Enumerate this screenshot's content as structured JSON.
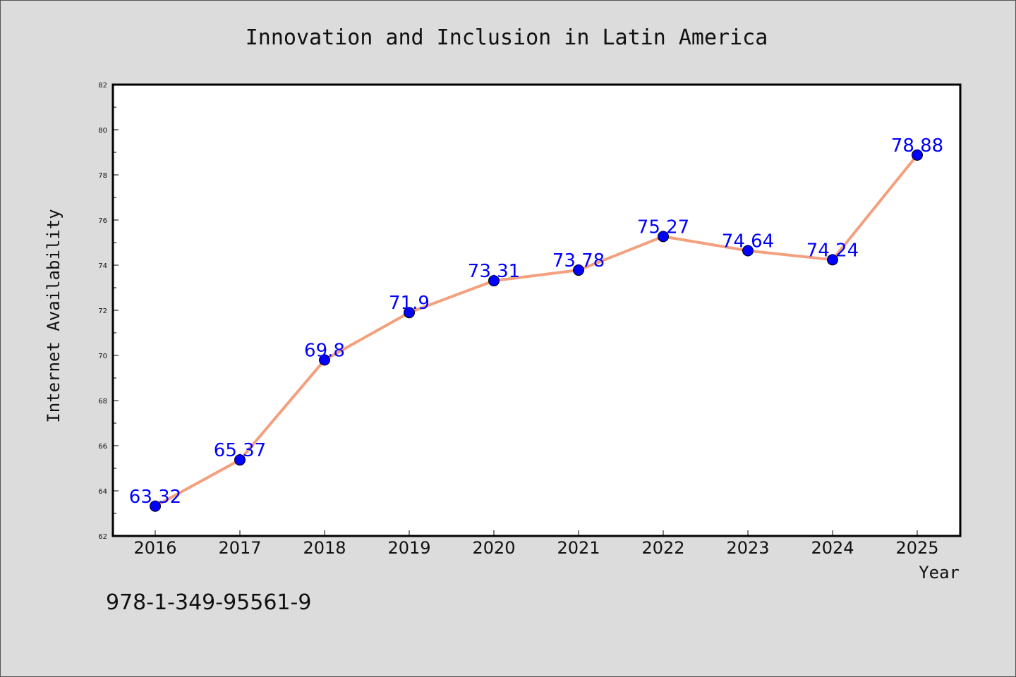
{
  "colors": {
    "line": "#f4a07e",
    "marker": "#0000ff",
    "label": "#0000ff",
    "background": "#dcdcdc",
    "plot_background": "#ffffff"
  },
  "footnote": "978-1-349-95561-9",
  "chart_data": {
    "type": "line",
    "title": "Innovation and Inclusion in Latin America",
    "xlabel": "Year",
    "ylabel": "Internet Availability",
    "categories": [
      "2016",
      "2017",
      "2018",
      "2019",
      "2020",
      "2021",
      "2022",
      "2023",
      "2024",
      "2025"
    ],
    "series": [
      {
        "values": [
          63.32,
          65.37,
          69.8,
          71.9,
          73.31,
          73.78,
          75.27,
          74.64,
          74.24,
          78.88
        ],
        "labels": [
          "63.32",
          "65.37",
          "69.8",
          "71.9",
          "73.31",
          "73.78",
          "75.27",
          "74.64",
          "74.24",
          "78.88"
        ]
      }
    ],
    "ylim": [
      62,
      82
    ],
    "yticks": [
      62,
      64,
      66,
      68,
      70,
      72,
      74,
      76,
      78,
      80,
      82
    ],
    "grid": false,
    "legend": "none"
  }
}
